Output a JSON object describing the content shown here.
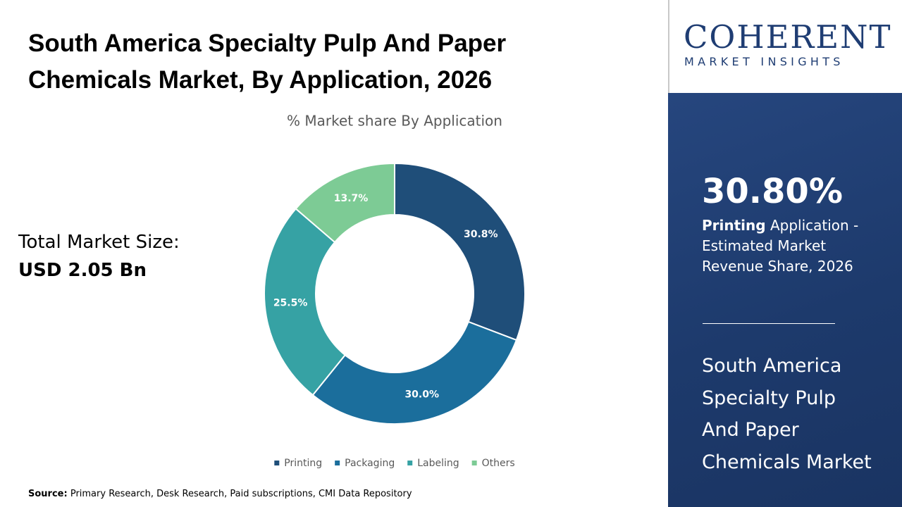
{
  "header": {
    "title_lines": [
      "South America Specialty Pulp And Paper",
      "Chemicals Market,  By Application, 2026"
    ]
  },
  "market_size": {
    "label": "Total Market Size:",
    "value": "USD 2.05 Bn"
  },
  "chart_data": {
    "type": "donut",
    "title": "% Market share  By Application",
    "categories": [
      "Printing",
      "Packaging",
      "Labeling",
      "Others"
    ],
    "values": [
      30.8,
      30.0,
      25.5,
      13.7
    ],
    "value_labels": [
      "30.8%",
      "30.0%",
      "25.5%",
      "13.7%"
    ],
    "colors": [
      "#1f4e79",
      "#1b6e9c",
      "#36a2a4",
      "#7dcb95"
    ],
    "legend": "bottom"
  },
  "logo": {
    "name": "COHERENT",
    "tagline": "MARKET INSIGHTS"
  },
  "side": {
    "highlight_value": "30.80%",
    "highlight_segment": "Printing",
    "highlight_caption": "Application - Estimated Market Revenue Share, 2026",
    "title_lines": [
      "South America",
      "Specialty Pulp",
      "And Paper",
      "Chemicals Market"
    ]
  },
  "source": {
    "label": "Source:",
    "text": "Primary Research, Desk Research, Paid subscriptions, CMI Data Repository"
  }
}
